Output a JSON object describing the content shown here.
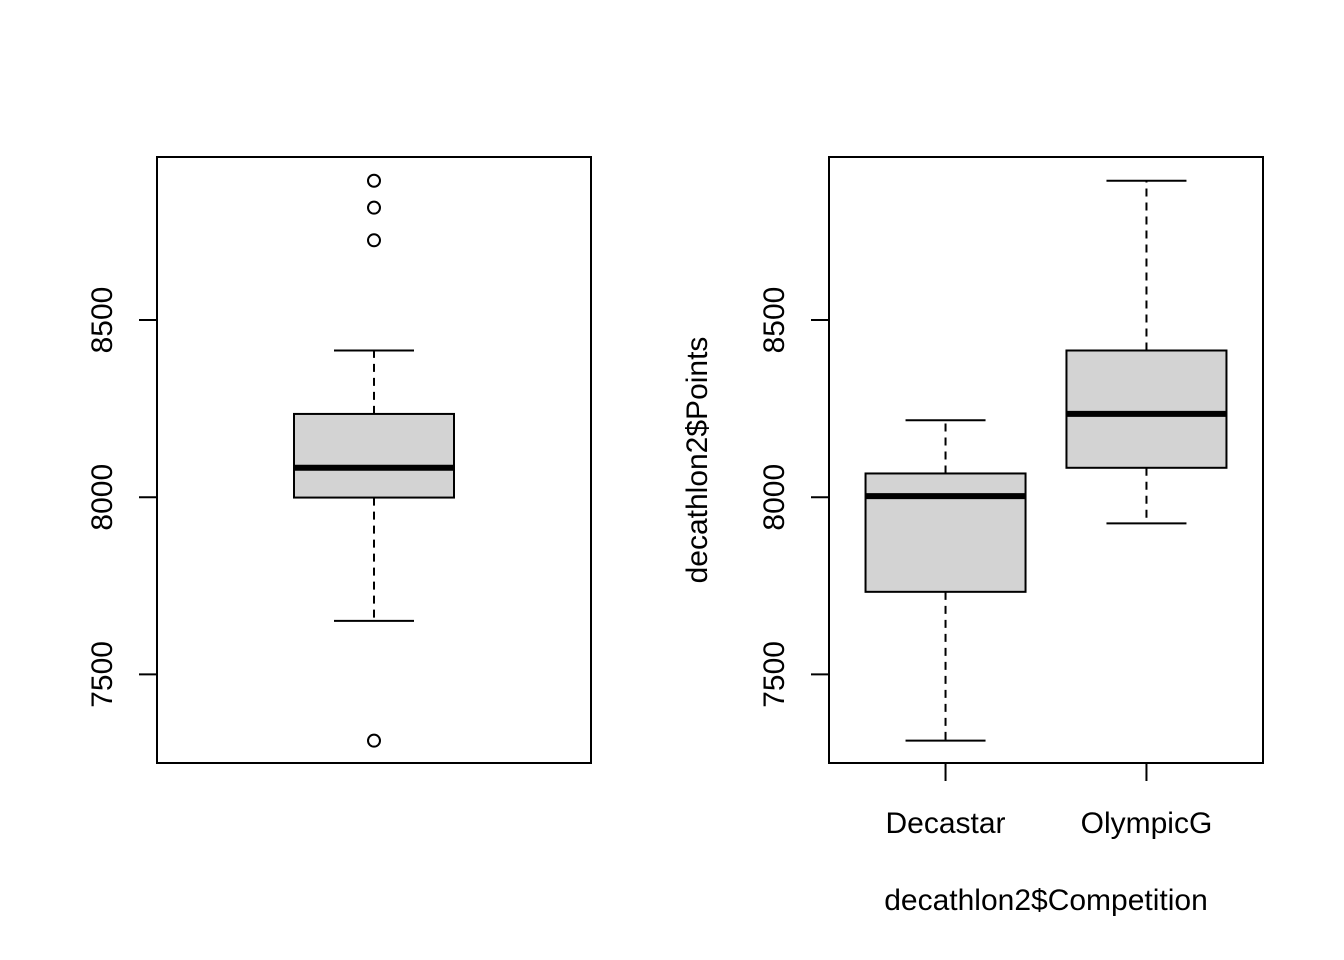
{
  "chart_data": [
    {
      "type": "boxplot",
      "title": "",
      "xlabel": "",
      "ylabel": "",
      "ylim": [
        7250,
        8960
      ],
      "yticks": [
        7500,
        8000,
        8500
      ],
      "categories": [],
      "box_fill": "#d3d3d3",
      "boxes": [
        {
          "name": "",
          "whisker_low": 7651,
          "q1": 7999,
          "median": 8083,
          "q3": 8235,
          "whisker_high": 8414,
          "outliers": [
            7313,
            8725,
            8817,
            8893
          ]
        }
      ]
    },
    {
      "type": "boxplot",
      "title": "",
      "xlabel": "decathlon2$Competition",
      "ylabel": "decathlon2$Points",
      "ylim": [
        7250,
        8960
      ],
      "yticks": [
        7500,
        8000,
        8500
      ],
      "categories": [
        "Decastar",
        "OlympicG"
      ],
      "box_fill": "#d3d3d3",
      "boxes": [
        {
          "name": "Decastar",
          "whisker_low": 7313,
          "q1": 7733,
          "median": 8003,
          "q3": 8067,
          "whisker_high": 8217,
          "outliers": []
        },
        {
          "name": "OlympicG",
          "whisker_low": 7926,
          "q1": 8083,
          "median": 8235,
          "q3": 8414,
          "whisker_high": 8893,
          "outliers": []
        }
      ]
    }
  ]
}
